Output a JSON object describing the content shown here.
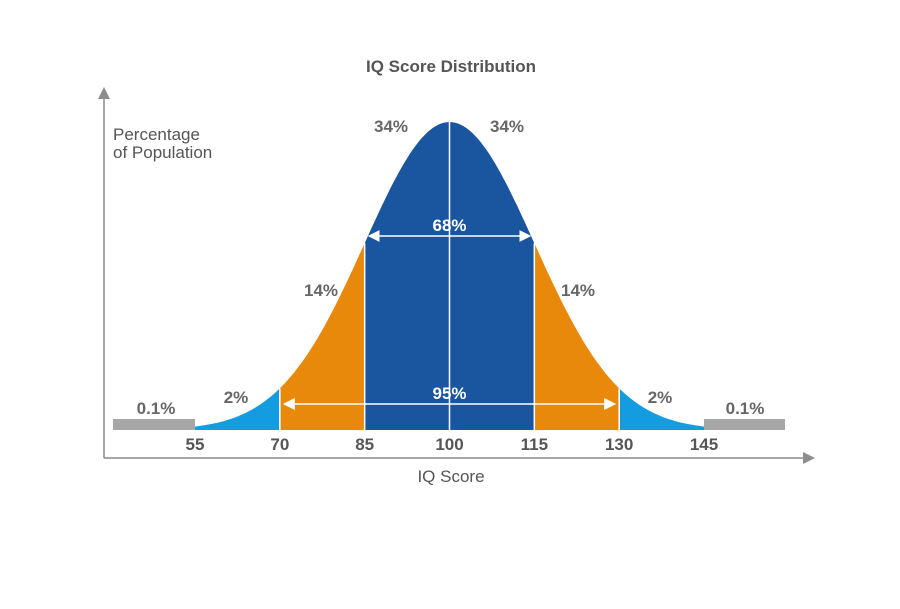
{
  "chart_data": {
    "type": "area",
    "title": "IQ Score Distribution",
    "xlabel": "IQ Score",
    "ylabel": [
      "Percentage",
      "of Population"
    ],
    "x_ticks": [
      55,
      70,
      85,
      100,
      115,
      130,
      145
    ],
    "mean": 100,
    "sd": 15,
    "regions": [
      {
        "from": 70,
        "to": 85,
        "percent": "14%",
        "color": "#E8890C"
      },
      {
        "from": 85,
        "to": 100,
        "percent": "34%",
        "color": "#1A56A0"
      },
      {
        "from": 100,
        "to": 115,
        "percent": "34%",
        "color": "#1A56A0"
      },
      {
        "from": 115,
        "to": 130,
        "percent": "14%",
        "color": "#E8890C"
      },
      {
        "from": 55,
        "to": 70,
        "percent": "2%",
        "color": "#149CE0"
      },
      {
        "from": 130,
        "to": 145,
        "percent": "2%",
        "color": "#149CE0"
      },
      {
        "from": 40,
        "to": 55,
        "percent": "0.1%",
        "color": "#A6A6A6"
      },
      {
        "from": 145,
        "to": 160,
        "percent": "0.1%",
        "color": "#A6A6A6"
      }
    ],
    "spans": [
      {
        "label": "68%",
        "from": 85,
        "to": 115
      },
      {
        "label": "95%",
        "from": 70,
        "to": 130
      }
    ],
    "colors": {
      "axis": "#8C8C8C",
      "text": "#666666",
      "divider": "#ffffff"
    }
  }
}
